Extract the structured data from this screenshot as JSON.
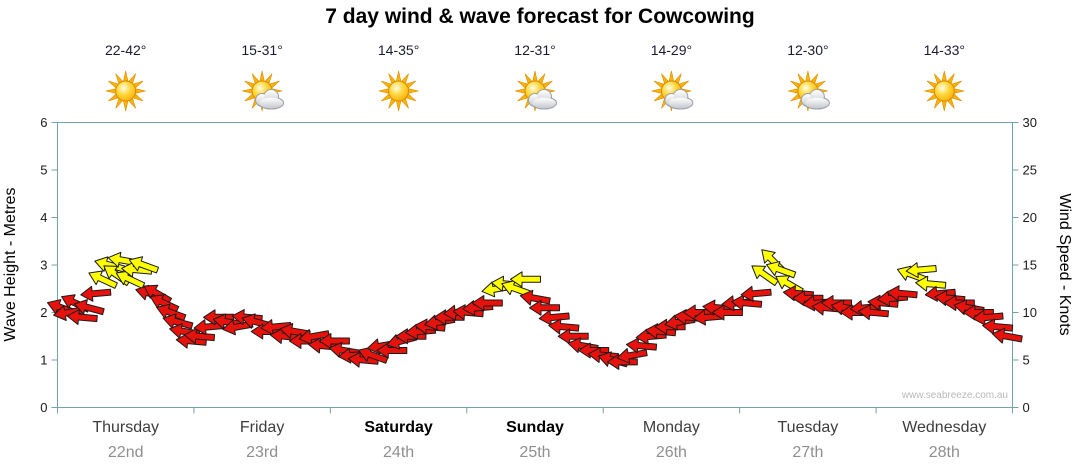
{
  "title": "7 day wind & wave forecast for Cowcowing",
  "watermark": "www.seabreeze.com.au",
  "chart_data": {
    "type": "scatter",
    "marker": "wind-arrow",
    "title": "7 day wind & wave forecast for Cowcowing",
    "grid": false,
    "y_left_axis": {
      "label": "Wave Height - Metres",
      "min": 0,
      "max": 6,
      "ticks": [
        0,
        1,
        2,
        3,
        4,
        5,
        6
      ]
    },
    "y_right_axis": {
      "label": "Wind Speed - Knots",
      "min": 0,
      "max": 30,
      "ticks": [
        0,
        5,
        10,
        15,
        20,
        25,
        30
      ]
    },
    "x_axis": {
      "days": [
        {
          "name": "Thursday",
          "date": "22nd",
          "temp": "22-42°",
          "icon": "sun",
          "bold": false
        },
        {
          "name": "Friday",
          "date": "23rd",
          "temp": "15-31°",
          "icon": "sun-cloud",
          "bold": false
        },
        {
          "name": "Saturday",
          "date": "24th",
          "temp": "14-35°",
          "icon": "sun",
          "bold": true
        },
        {
          "name": "Sunday",
          "date": "25th",
          "temp": "12-31°",
          "icon": "sun-cloud",
          "bold": true
        },
        {
          "name": "Monday",
          "date": "26th",
          "temp": "14-29°",
          "icon": "sun-cloud",
          "bold": false
        },
        {
          "name": "Tuesday",
          "date": "27th",
          "temp": "12-30°",
          "icon": "sun-cloud",
          "bold": false
        },
        {
          "name": "Wednesday",
          "date": "28th",
          "temp": "14-33°",
          "icon": "sun",
          "bold": false
        }
      ]
    },
    "colors": {
      "red": "#e8120c",
      "yellow": "#ffff00",
      "axis": "#74a2ac"
    },
    "arrows": {
      "units": {
        "x": "day index 0-7 (fraction = time of day)",
        "y": "wind speed knots",
        "rot": "degrees cw, 180 = pointing left",
        "c": "r=red y=yellow"
      },
      "points": [
        [
          0.03,
          10.5,
          200,
          "r"
        ],
        [
          0.08,
          10,
          170,
          "r"
        ],
        [
          0.13,
          11,
          205,
          "r"
        ],
        [
          0.18,
          9.5,
          185,
          "r"
        ],
        [
          0.23,
          10.5,
          195,
          "r"
        ],
        [
          0.28,
          12,
          175,
          "r"
        ],
        [
          0.33,
          13.5,
          205,
          "y"
        ],
        [
          0.38,
          15,
          195,
          "y"
        ],
        [
          0.43,
          14,
          215,
          "y"
        ],
        [
          0.48,
          15.5,
          190,
          "y"
        ],
        [
          0.53,
          13.5,
          205,
          "y"
        ],
        [
          0.58,
          14.5,
          185,
          "y"
        ],
        [
          0.63,
          15,
          200,
          "y"
        ],
        [
          0.68,
          12,
          195,
          "r"
        ],
        [
          0.73,
          12,
          210,
          "r"
        ],
        [
          0.78,
          11,
          205,
          "r"
        ],
        [
          0.83,
          10,
          200,
          "r"
        ],
        [
          0.88,
          9,
          195,
          "r"
        ],
        [
          0.93,
          8,
          190,
          "r"
        ],
        [
          0.98,
          7,
          185,
          "r"
        ],
        [
          1.04,
          7.5,
          185,
          "r"
        ],
        [
          1.11,
          8.5,
          175,
          "r"
        ],
        [
          1.18,
          9.5,
          180,
          "r"
        ],
        [
          1.25,
          9,
          190,
          "r"
        ],
        [
          1.32,
          8.5,
          170,
          "r"
        ],
        [
          1.39,
          9.5,
          185,
          "r"
        ],
        [
          1.46,
          9,
          195,
          "r"
        ],
        [
          1.53,
          8,
          180,
          "r"
        ],
        [
          1.6,
          8.5,
          175,
          "r"
        ],
        [
          1.67,
          7.5,
          185,
          "r"
        ],
        [
          1.74,
          8,
          190,
          "r"
        ],
        [
          1.81,
          7,
          180,
          "r"
        ],
        [
          1.88,
          7.5,
          170,
          "r"
        ],
        [
          1.95,
          6.5,
          185,
          "r"
        ],
        [
          2.03,
          7,
          180,
          "r"
        ],
        [
          2.1,
          6,
          190,
          "r"
        ],
        [
          2.17,
          5.5,
          175,
          "r"
        ],
        [
          2.24,
          5,
          185,
          "r"
        ],
        [
          2.31,
          5.5,
          200,
          "r"
        ],
        [
          2.38,
          6.5,
          170,
          "r"
        ],
        [
          2.45,
          6,
          180,
          "r"
        ],
        [
          2.52,
          7,
          165,
          "r"
        ],
        [
          2.59,
          7.5,
          180,
          "r"
        ],
        [
          2.66,
          8,
          175,
          "r"
        ],
        [
          2.73,
          8.5,
          185,
          "r"
        ],
        [
          2.8,
          9,
          170,
          "r"
        ],
        [
          2.87,
          9.5,
          180,
          "r"
        ],
        [
          2.94,
          10,
          175,
          "r"
        ],
        [
          3.01,
          10,
          185,
          "r"
        ],
        [
          3.08,
          10.5,
          175,
          "r"
        ],
        [
          3.15,
          11,
          180,
          "r"
        ],
        [
          3.22,
          12.5,
          170,
          "y"
        ],
        [
          3.29,
          13,
          185,
          "y"
        ],
        [
          3.36,
          12.5,
          200,
          "y"
        ],
        [
          3.43,
          13.5,
          180,
          "y"
        ],
        [
          3.5,
          11.5,
          190,
          "r"
        ],
        [
          3.57,
          10.5,
          180,
          "r"
        ],
        [
          3.64,
          9.5,
          175,
          "r"
        ],
        [
          3.71,
          8.5,
          185,
          "r"
        ],
        [
          3.78,
          7.5,
          180,
          "r"
        ],
        [
          3.85,
          6.5,
          190,
          "r"
        ],
        [
          3.93,
          6,
          180,
          "r"
        ],
        [
          4.0,
          5.5,
          185,
          "r"
        ],
        [
          4.07,
          5,
          195,
          "r"
        ],
        [
          4.14,
          4.8,
          180,
          "r"
        ],
        [
          4.21,
          5.5,
          170,
          "r"
        ],
        [
          4.28,
          6.5,
          185,
          "r"
        ],
        [
          4.35,
          7.5,
          175,
          "r"
        ],
        [
          4.42,
          8,
          185,
          "r"
        ],
        [
          4.49,
          8.5,
          180,
          "r"
        ],
        [
          4.56,
          9,
          170,
          "r"
        ],
        [
          4.63,
          9.5,
          185,
          "r"
        ],
        [
          4.7,
          10,
          180,
          "r"
        ],
        [
          4.77,
          9.5,
          175,
          "r"
        ],
        [
          4.84,
          10.5,
          185,
          "r"
        ],
        [
          4.91,
          10,
          180,
          "r"
        ],
        [
          4.98,
          11,
          175,
          "r"
        ],
        [
          5.05,
          11,
          185,
          "r"
        ],
        [
          5.12,
          12,
          175,
          "r"
        ],
        [
          5.18,
          14,
          215,
          "y"
        ],
        [
          5.24,
          15.5,
          225,
          "y"
        ],
        [
          5.3,
          14.5,
          200,
          "y"
        ],
        [
          5.36,
          13,
          210,
          "y"
        ],
        [
          5.43,
          12,
          185,
          "r"
        ],
        [
          5.5,
          11.5,
          180,
          "r"
        ],
        [
          5.57,
          11,
          175,
          "r"
        ],
        [
          5.64,
          10.5,
          185,
          "r"
        ],
        [
          5.71,
          11,
          180,
          "r"
        ],
        [
          5.78,
          10.5,
          190,
          "r"
        ],
        [
          5.85,
          10,
          180,
          "r"
        ],
        [
          5.92,
          10.5,
          175,
          "r"
        ],
        [
          5.98,
          10,
          185,
          "r"
        ],
        [
          6.05,
          11,
          185,
          "r"
        ],
        [
          6.12,
          11.5,
          175,
          "r"
        ],
        [
          6.19,
          12,
          185,
          "r"
        ],
        [
          6.26,
          14,
          200,
          "y"
        ],
        [
          6.33,
          14.5,
          175,
          "y"
        ],
        [
          6.4,
          13,
          185,
          "y"
        ],
        [
          6.47,
          12,
          175,
          "r"
        ],
        [
          6.54,
          11.5,
          185,
          "r"
        ],
        [
          6.61,
          11,
          180,
          "r"
        ],
        [
          6.68,
          10.5,
          190,
          "r"
        ],
        [
          6.75,
          10,
          180,
          "r"
        ],
        [
          6.82,
          9.5,
          175,
          "r"
        ],
        [
          6.89,
          8.5,
          185,
          "r"
        ],
        [
          6.96,
          7.5,
          190,
          "r"
        ]
      ]
    }
  }
}
